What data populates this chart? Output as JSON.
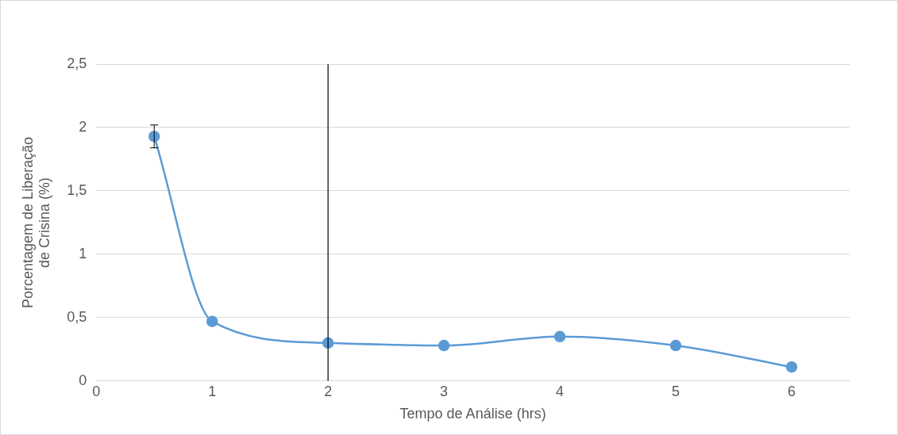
{
  "chart_data": {
    "type": "line",
    "xlabel": "Tempo de Análise (hrs)",
    "ylabel": "Porcentagem de Liberação\nde Crisina (%)",
    "x": [
      0.5,
      1,
      2,
      3,
      4,
      5,
      6
    ],
    "series": [
      {
        "color": "#5b9bd5",
        "values": [
          1.93,
          0.47,
          0.3,
          0.28,
          0.35,
          0.28,
          0.11
        ],
        "errors": [
          0.09,
          null,
          null,
          null,
          null,
          null,
          null
        ]
      }
    ],
    "xlim": [
      0,
      6.5
    ],
    "xticks": [
      0,
      1,
      2,
      3,
      4,
      5,
      6
    ],
    "ylim": [
      0,
      2.5
    ],
    "yticks": [
      0,
      {
        "value": 0.5,
        "label": "0,5"
      },
      1,
      {
        "value": 1.5,
        "label": "1,5"
      },
      2,
      {
        "value": 2.5,
        "label": "2,5"
      }
    ],
    "ref_lines": [
      {
        "axis": "x",
        "value": 2,
        "color": "#000000"
      }
    ],
    "grid": "y",
    "legend": false,
    "marker": "circle",
    "line_style": "solid"
  }
}
